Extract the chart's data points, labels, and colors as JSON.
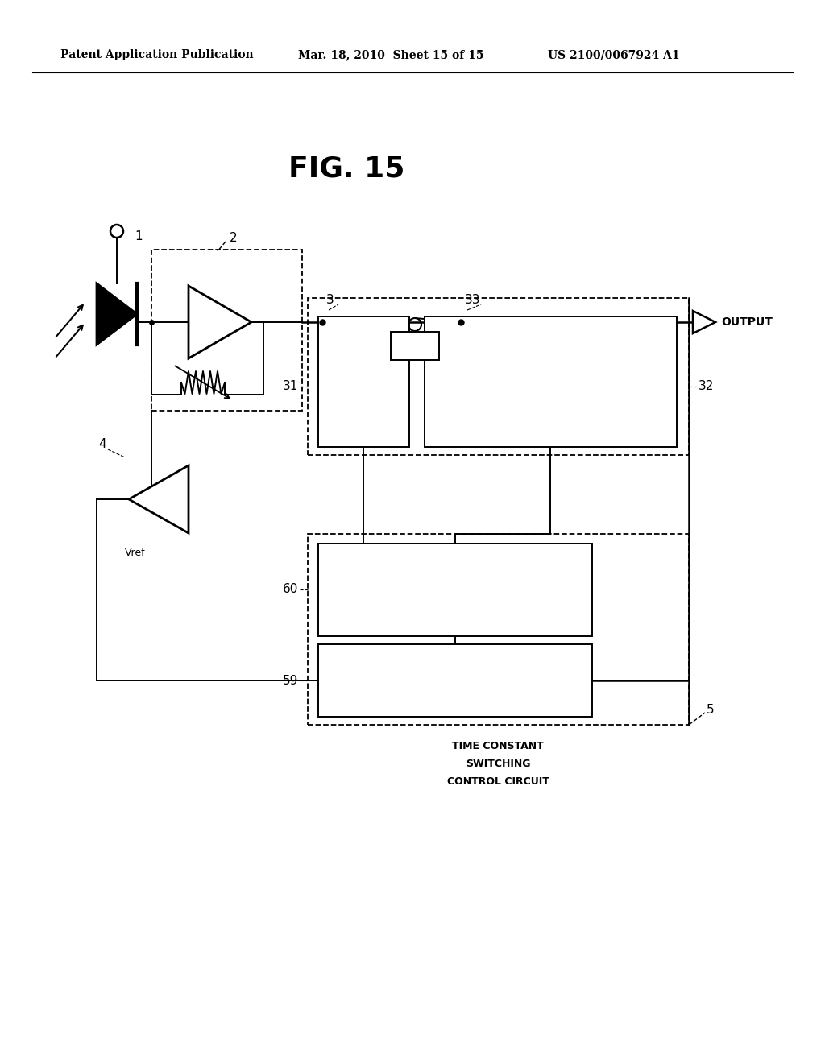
{
  "bg_color": "#ffffff",
  "header_left": "Patent Application Publication",
  "header_center": "Mar. 18, 2010  Sheet 15 of 15",
  "header_right": "US 2100/0067924 A1",
  "fig_title": "FIG. 15"
}
